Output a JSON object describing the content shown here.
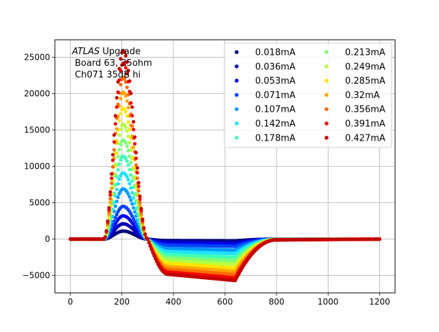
{
  "chart_data": {
    "type": "scatter",
    "title": "",
    "xlabel": "",
    "ylabel": "",
    "xlim": [
      -60,
      1260
    ],
    "ylim": [
      -7400,
      27400
    ],
    "grid": true,
    "legend_placement": "top-right",
    "legend_columns": 2,
    "x_ticks": [
      0,
      200,
      400,
      600,
      800,
      1000,
      1200
    ],
    "y_ticks": [
      -5000,
      0,
      5000,
      10000,
      15000,
      20000,
      25000
    ],
    "x_tick_labels": [
      "0",
      "200",
      "400",
      "600",
      "800",
      "1000",
      "1200"
    ],
    "y_tick_labels": [
      "−5000",
      "0",
      "5000",
      "10000",
      "15000",
      "20000",
      "25000"
    ],
    "annotation": {
      "line1_italic": "ATLAS",
      "line1_rest": " Upgrade",
      "line2": " Board 63, 25ohm",
      "line3": " Ch071 35dB hi"
    },
    "pulse_shape": {
      "x_step": 5,
      "x_range": [
        0,
        1200
      ],
      "baseline_until": 130,
      "peak_x": 205,
      "zero_cross_x": 300,
      "undershoot_start_x": 380,
      "undershoot_end_x": 640,
      "recovery_end_x": 800,
      "undershoot_ratio": 0.22
    },
    "series": [
      {
        "name": "0.018mA",
        "color": "#00007f",
        "peak": 1100
      },
      {
        "name": "0.036mA",
        "color": "#0000b2",
        "peak": 2100
      },
      {
        "name": "0.053mA",
        "color": "#0000f1",
        "peak": 3200
      },
      {
        "name": "0.071mA",
        "color": "#0044ff",
        "peak": 4500
      },
      {
        "name": "0.107mA",
        "color": "#0098ff",
        "peak": 6900
      },
      {
        "name": "0.142mA",
        "color": "#1fe2ff",
        "peak": 9100
      },
      {
        "name": "0.178mA",
        "color": "#3fffb7",
        "peak": 11400
      },
      {
        "name": "0.213mA",
        "color": "#7cff79",
        "peak": 13600
      },
      {
        "name": "0.249mA",
        "color": "#b7ff3f",
        "peak": 15800
      },
      {
        "name": "0.285mA",
        "color": "#ffe500",
        "peak": 18000
      },
      {
        "name": "0.32mA",
        "color": "#ffa700",
        "peak": 20200
      },
      {
        "name": "0.356mA",
        "color": "#ff6c00",
        "peak": 22200
      },
      {
        "name": "0.391mA",
        "color": "#f10800",
        "peak": 24200
      },
      {
        "name": "0.427mA",
        "color": "#c40000",
        "peak": 25900
      }
    ]
  }
}
